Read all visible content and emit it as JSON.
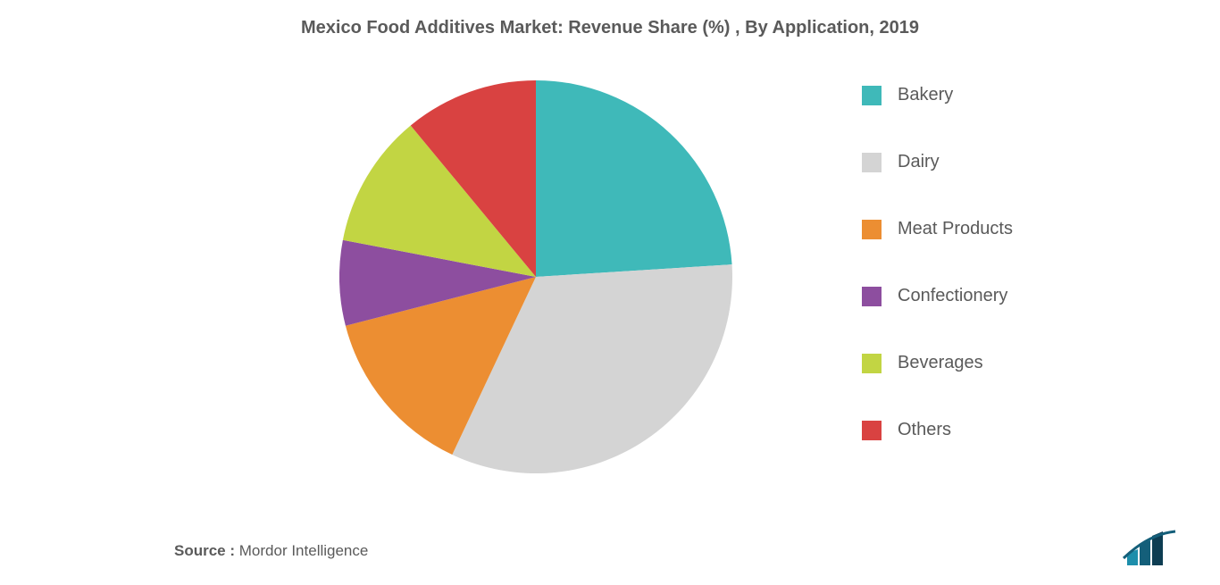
{
  "chart": {
    "type": "pie",
    "title": "Mexico Food Additives Market: Revenue Share (%) , By Application, 2019",
    "title_fontsize": 20,
    "title_color": "#5a5a5a",
    "background_color": "#ffffff",
    "start_angle_deg": 0,
    "pie_radius": 220,
    "slices": [
      {
        "label": "Bakery",
        "value": 24,
        "color": "#3fb9b9"
      },
      {
        "label": "Dairy",
        "value": 33,
        "color": "#d4d4d4"
      },
      {
        "label": "Meat Products",
        "value": 14,
        "color": "#ec8e32"
      },
      {
        "label": "Confectionery",
        "value": 7,
        "color": "#8d4e9f"
      },
      {
        "label": "Beverages",
        "value": 11,
        "color": "#c2d543"
      },
      {
        "label": "Others",
        "value": 11,
        "color": "#d94241"
      }
    ],
    "legend": {
      "position": "right",
      "fontsize": 20,
      "font_color": "#5a5a5a",
      "swatch_size": 22,
      "item_gap": 52
    }
  },
  "source": {
    "label": "Source :",
    "text": "Mordor Intelligence",
    "fontsize": 17,
    "color": "#5a5a5a"
  },
  "logo": {
    "name": "mordor-intelligence-logo",
    "bar_colors": [
      "#1d8eab",
      "#145f7a",
      "#0d3d52"
    ],
    "accent_color": "#145f7a"
  }
}
